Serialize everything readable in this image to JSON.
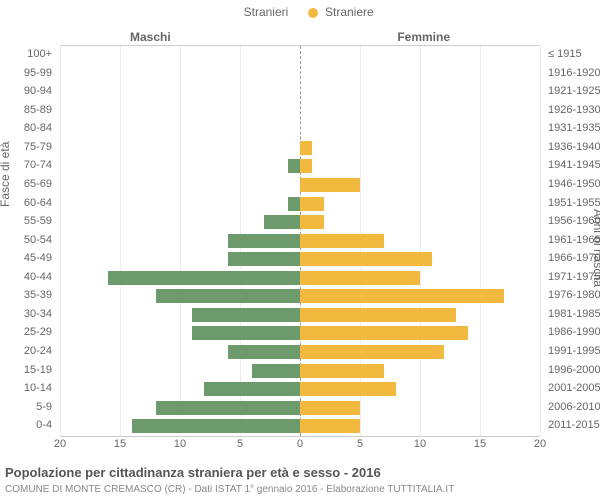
{
  "legend": {
    "male": {
      "label": "Stranieri",
      "color": "#6c9a6c"
    },
    "female": {
      "label": "Straniere",
      "color": "#f2b93f"
    }
  },
  "headers": {
    "left": "Maschi",
    "right": "Femmine"
  },
  "y_axis_left": "Fasce di età",
  "y_axis_right": "Anni di nascita",
  "x_axis": {
    "max": 20,
    "ticks": [
      20,
      15,
      10,
      5,
      0,
      5,
      10,
      15,
      20
    ]
  },
  "rows": [
    {
      "age": "100+",
      "birth": "≤ 1915",
      "m": 0,
      "f": 0
    },
    {
      "age": "95-99",
      "birth": "1916-1920",
      "m": 0,
      "f": 0
    },
    {
      "age": "90-94",
      "birth": "1921-1925",
      "m": 0,
      "f": 0
    },
    {
      "age": "85-89",
      "birth": "1926-1930",
      "m": 0,
      "f": 0
    },
    {
      "age": "80-84",
      "birth": "1931-1935",
      "m": 0,
      "f": 0
    },
    {
      "age": "75-79",
      "birth": "1936-1940",
      "m": 0,
      "f": 1
    },
    {
      "age": "70-74",
      "birth": "1941-1945",
      "m": 1,
      "f": 1
    },
    {
      "age": "65-69",
      "birth": "1946-1950",
      "m": 0,
      "f": 5
    },
    {
      "age": "60-64",
      "birth": "1951-1955",
      "m": 1,
      "f": 2
    },
    {
      "age": "55-59",
      "birth": "1956-1960",
      "m": 3,
      "f": 2
    },
    {
      "age": "50-54",
      "birth": "1961-1965",
      "m": 6,
      "f": 7
    },
    {
      "age": "45-49",
      "birth": "1966-1970",
      "m": 6,
      "f": 11
    },
    {
      "age": "40-44",
      "birth": "1971-1975",
      "m": 16,
      "f": 10
    },
    {
      "age": "35-39",
      "birth": "1976-1980",
      "m": 12,
      "f": 17
    },
    {
      "age": "30-34",
      "birth": "1981-1985",
      "m": 9,
      "f": 13
    },
    {
      "age": "25-29",
      "birth": "1986-1990",
      "m": 9,
      "f": 14
    },
    {
      "age": "20-24",
      "birth": "1991-1995",
      "m": 6,
      "f": 12
    },
    {
      "age": "15-19",
      "birth": "1996-2000",
      "m": 4,
      "f": 7
    },
    {
      "age": "10-14",
      "birth": "2001-2005",
      "m": 8,
      "f": 8
    },
    {
      "age": "5-9",
      "birth": "2006-2010",
      "m": 12,
      "f": 5
    },
    {
      "age": "0-4",
      "birth": "2011-2015",
      "m": 14,
      "f": 5
    }
  ],
  "title": "Popolazione per cittadinanza straniera per età e sesso - 2016",
  "subtitle": "COMUNE DI MONTE CREMASCO (CR) - Dati ISTAT 1° gennaio 2016 - Elaborazione TUTTITALIA.IT",
  "colors": {
    "male_bar": "#6c9a6c",
    "female_bar": "#f2b93f",
    "background": "#ffffff",
    "text": "#666666",
    "grid": "#eeeeee"
  },
  "chart_type": "pyramid"
}
